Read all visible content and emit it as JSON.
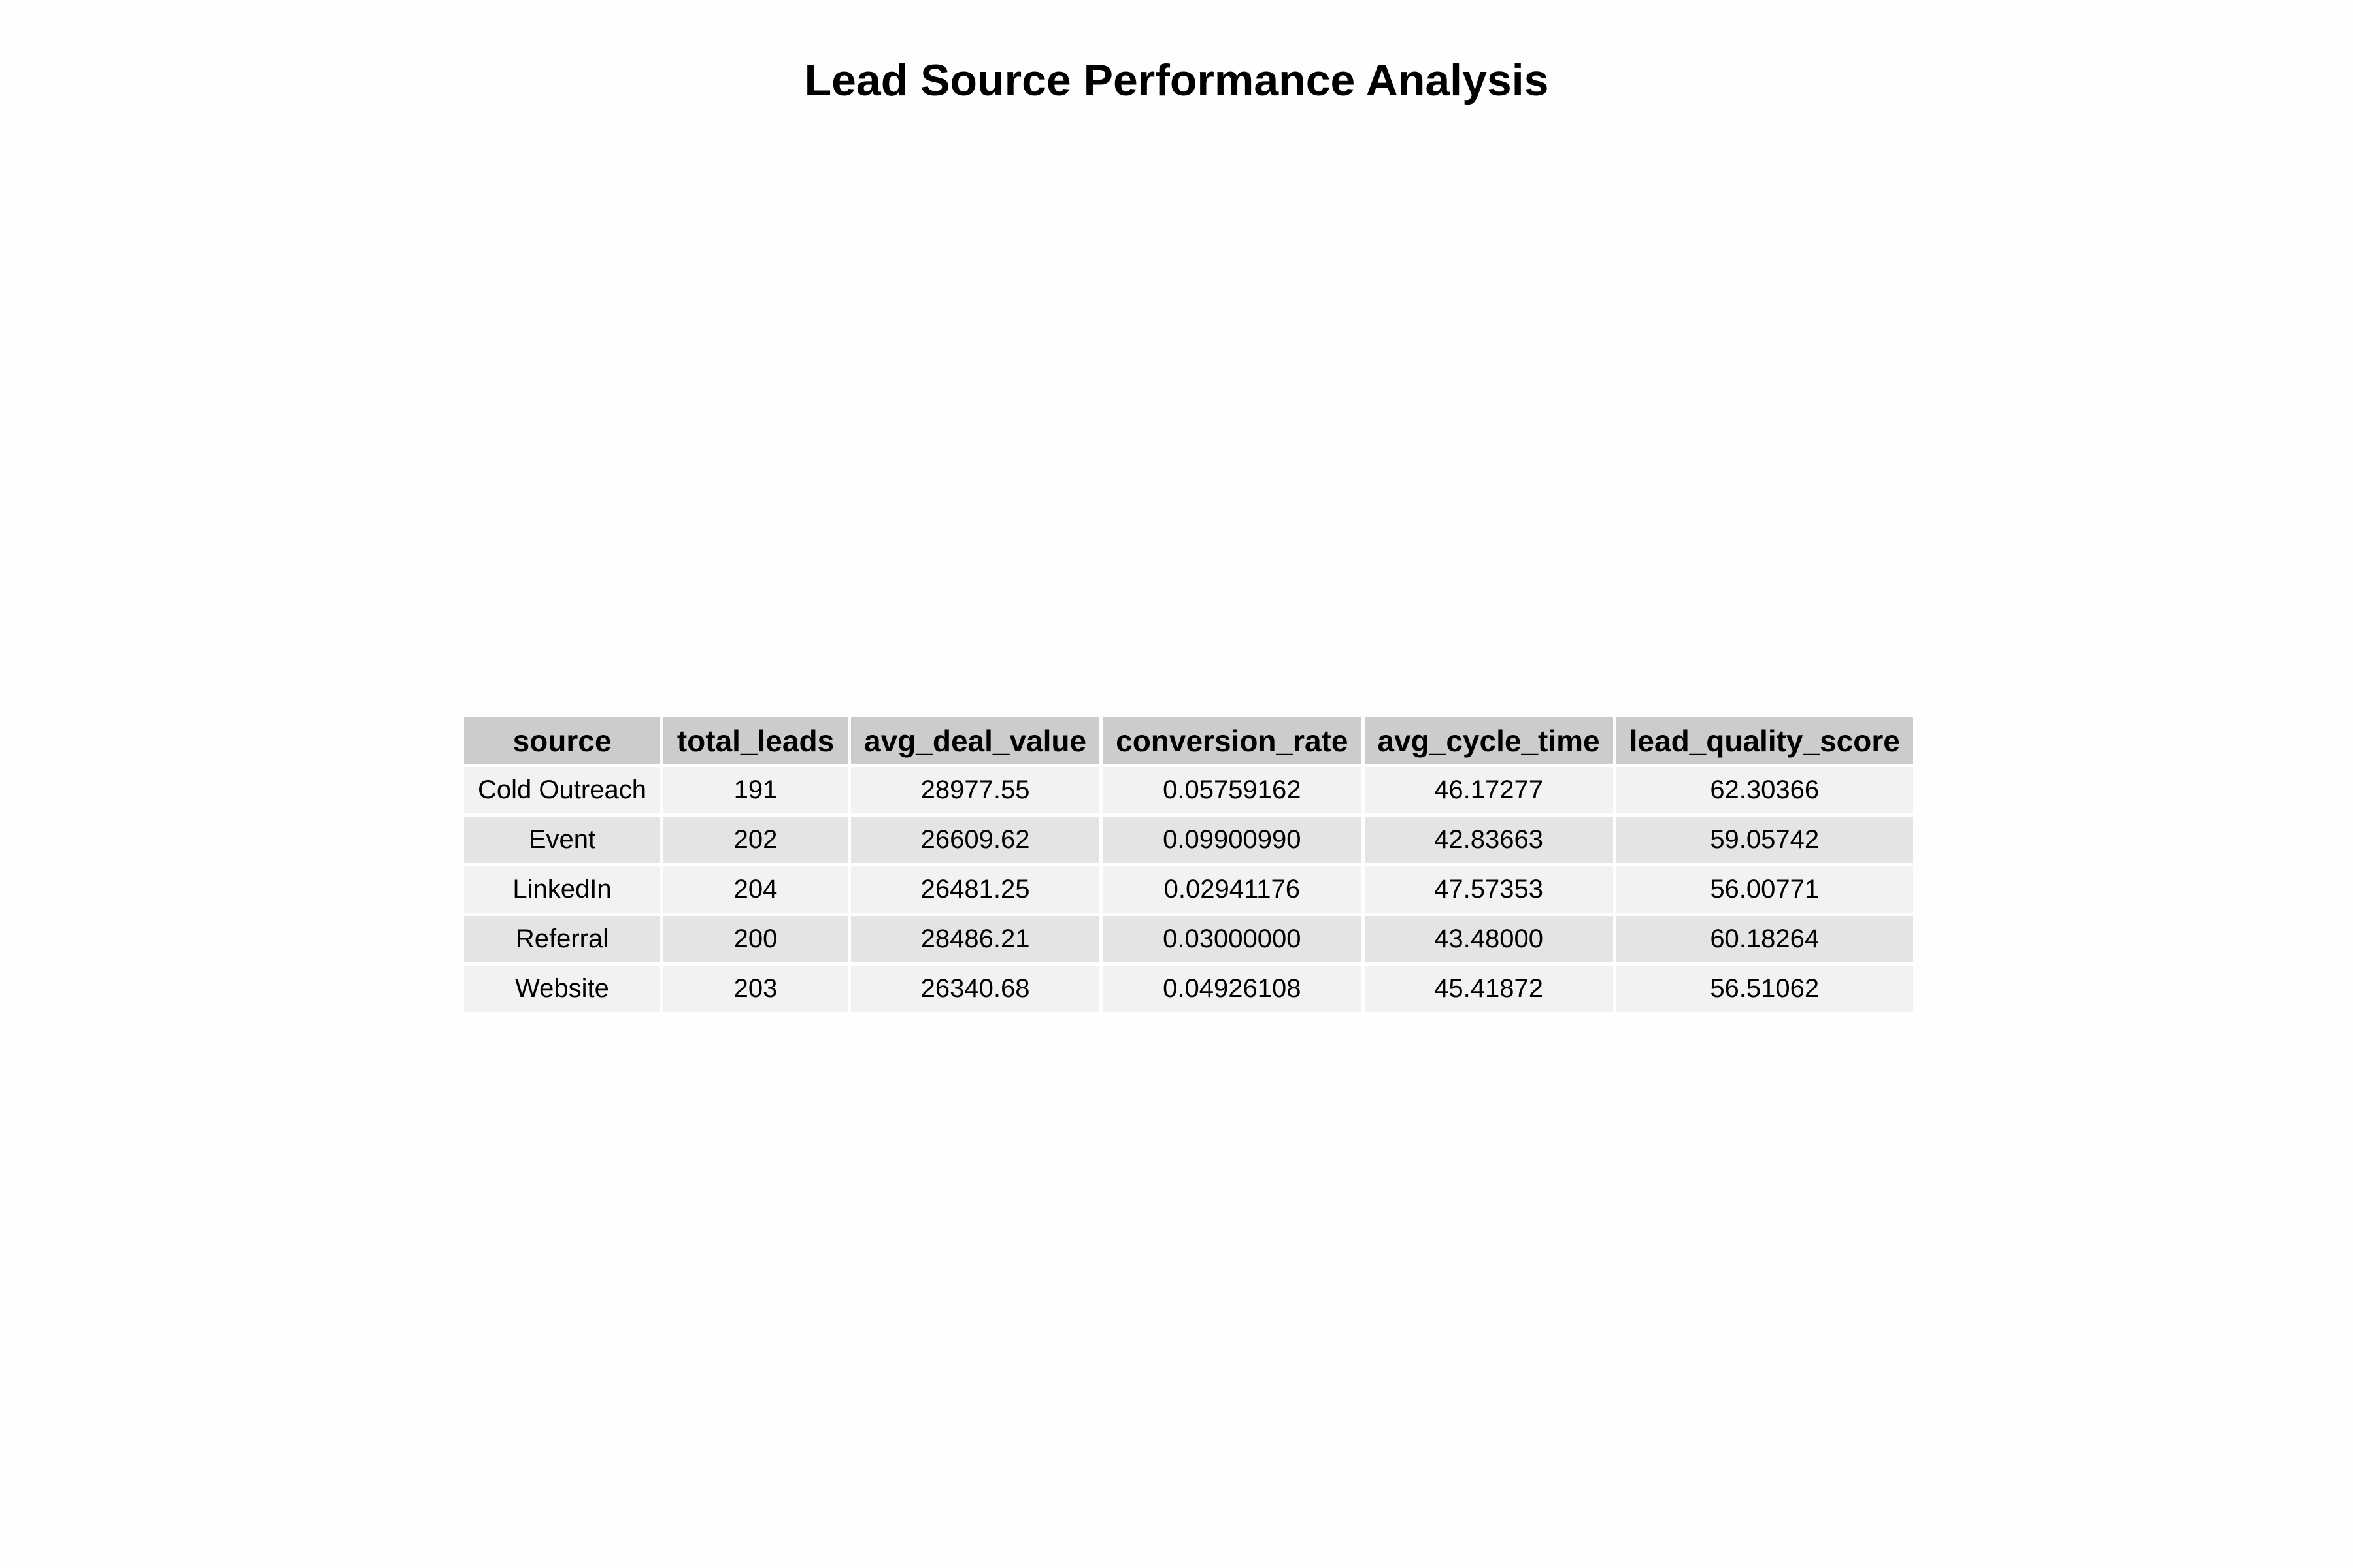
{
  "chart_data": {
    "type": "table",
    "title": "Lead Source Performance Analysis",
    "columns": [
      "source",
      "total_leads",
      "avg_deal_value",
      "conversion_rate",
      "avg_cycle_time",
      "lead_quality_score"
    ],
    "rows": [
      [
        "Cold Outreach",
        "191",
        "28977.55",
        "0.05759162",
        "46.17277",
        "62.30366"
      ],
      [
        "Event",
        "202",
        "26609.62",
        "0.09900990",
        "42.83663",
        "59.05742"
      ],
      [
        "LinkedIn",
        "204",
        "26481.25",
        "0.02941176",
        "47.57353",
        "56.00771"
      ],
      [
        "Referral",
        "200",
        "28486.21",
        "0.03000000",
        "43.48000",
        "60.18264"
      ],
      [
        "Website",
        "203",
        "26340.68",
        "0.04926108",
        "45.41872",
        "56.51062"
      ]
    ]
  },
  "colors": {
    "header_fill": "#cccccc",
    "row_fill_light": "#f2f2f2",
    "row_fill_dark": "#e4e4e4",
    "background": "#fefefe",
    "text": "#000000"
  }
}
